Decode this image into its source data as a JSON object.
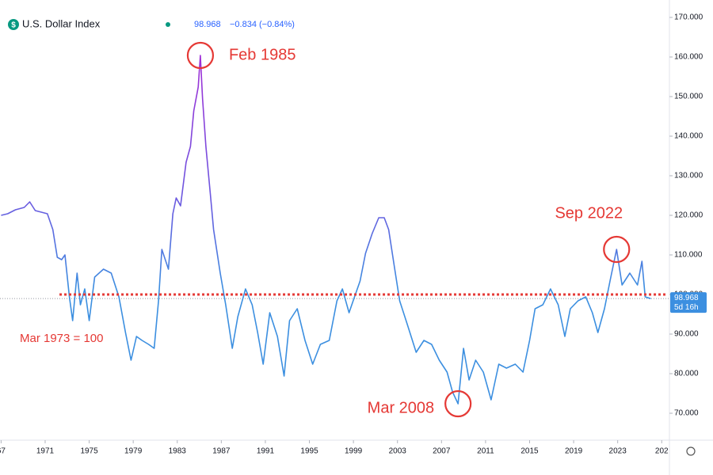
{
  "chart_data": {
    "type": "line",
    "title": "U.S. Dollar Index",
    "symbol_icon": "$",
    "last": 98.968,
    "change": "−0.834 (−0.84%)",
    "countdown": "5d 16h",
    "line_gradient": [
      "#a32bd6",
      "#6a5be0",
      "#3c8fe0"
    ],
    "reference_line": {
      "value": 100,
      "from": 1972.3,
      "color": "#e53935"
    },
    "annotations": [
      {
        "text": "Feb 1985",
        "x": 1985.1,
        "y": 160.4
      },
      {
        "text": "Mar 2008",
        "x": 2008.5,
        "y": 72.4
      },
      {
        "text": "Sep 2022",
        "x": 2022.9,
        "y": 111.4
      },
      {
        "text": "Mar 1973 = 100"
      }
    ],
    "xlim": [
      1966.9,
      2027.7
    ],
    "ylim": [
      63.4,
      174.4
    ],
    "xticks": [
      {
        "value": 1967,
        "label": "67"
      },
      1971,
      1975,
      1979,
      1983,
      1987,
      1991,
      1995,
      1999,
      2003,
      2007,
      2011,
      2015,
      2019,
      2023,
      {
        "value": 2027,
        "label": "202"
      }
    ],
    "yticks": [
      {
        "value": 70,
        "label": "70.000"
      },
      {
        "value": 80,
        "label": "80.000"
      },
      {
        "value": 90,
        "label": "90.000"
      },
      {
        "value": 100,
        "label": "100.000"
      },
      {
        "value": 110,
        "label": "110.000"
      },
      {
        "value": 120,
        "label": "120.000"
      },
      {
        "value": 130,
        "label": "130.000"
      },
      {
        "value": 140,
        "label": "140.000"
      },
      {
        "value": 150,
        "label": "150.000"
      },
      {
        "value": 160,
        "label": "160.000"
      },
      {
        "value": 170,
        "label": "170.000"
      }
    ],
    "x": [
      1967.0,
      1967.6,
      1968.3,
      1969.1,
      1969.6,
      1970.1,
      1971.2,
      1971.7,
      1972.1,
      1972.5,
      1972.8,
      1973.2,
      1973.5,
      1973.9,
      1974.2,
      1974.6,
      1975.0,
      1975.5,
      1976.3,
      1977.0,
      1977.7,
      1978.3,
      1978.8,
      1979.3,
      1979.8,
      1980.4,
      1980.9,
      1981.3,
      1981.6,
      1982.2,
      1982.6,
      1982.9,
      1983.3,
      1983.8,
      1984.2,
      1984.5,
      1984.9,
      1985.1,
      1985.3,
      1985.6,
      1986.0,
      1986.3,
      1986.9,
      1987.4,
      1988.0,
      1988.5,
      1989.2,
      1989.8,
      1990.3,
      1990.8,
      1991.4,
      1992.1,
      1992.7,
      1993.2,
      1993.9,
      1994.6,
      1995.3,
      1996.0,
      1996.8,
      1997.5,
      1998.0,
      1998.6,
      1999.1,
      1999.6,
      2000.1,
      2000.7,
      2001.3,
      2001.8,
      2002.2,
      2002.7,
      2003.2,
      2003.9,
      2004.7,
      2005.4,
      2006.1,
      2006.8,
      2007.5,
      2008.0,
      2008.5,
      2009.0,
      2009.5,
      2010.1,
      2010.8,
      2011.5,
      2012.2,
      2012.9,
      2013.7,
      2014.4,
      2015.0,
      2015.5,
      2016.2,
      2016.9,
      2017.6,
      2018.2,
      2018.7,
      2019.4,
      2020.1,
      2020.7,
      2021.2,
      2021.8,
      2022.3,
      2022.9,
      2023.4,
      2024.1,
      2024.8,
      2025.2,
      2025.5,
      2026.0
    ],
    "values": [
      120.0,
      120.4,
      121.4,
      122.0,
      123.4,
      121.2,
      120.4,
      116.4,
      109.4,
      108.8,
      110.0,
      99.4,
      93.4,
      105.4,
      97.4,
      101.4,
      93.4,
      104.4,
      106.4,
      105.4,
      99.4,
      90.4,
      83.4,
      89.4,
      88.4,
      87.4,
      86.4,
      98.4,
      111.4,
      106.4,
      120.4,
      124.4,
      122.4,
      133.4,
      137.4,
      146.4,
      152.4,
      160.4,
      149.4,
      137.4,
      125.4,
      116.4,
      105.4,
      97.4,
      86.4,
      94.4,
      101.4,
      97.4,
      90.4,
      82.4,
      95.4,
      89.4,
      79.4,
      93.4,
      96.4,
      88.4,
      82.4,
      87.4,
      88.4,
      98.4,
      101.4,
      95.4,
      99.4,
      103.4,
      110.4,
      115.4,
      119.4,
      119.4,
      116.4,
      107.4,
      98.4,
      92.4,
      85.4,
      88.4,
      87.4,
      83.4,
      80.4,
      75.4,
      72.4,
      86.4,
      78.4,
      83.4,
      80.4,
      73.4,
      82.4,
      81.4,
      82.4,
      80.4,
      88.4,
      96.4,
      97.4,
      101.4,
      97.4,
      89.4,
      96.4,
      98.4,
      99.4,
      95.4,
      90.4,
      96.4,
      103.4,
      111.4,
      102.4,
      105.4,
      102.4,
      108.4,
      99.4,
      98.968
    ]
  }
}
